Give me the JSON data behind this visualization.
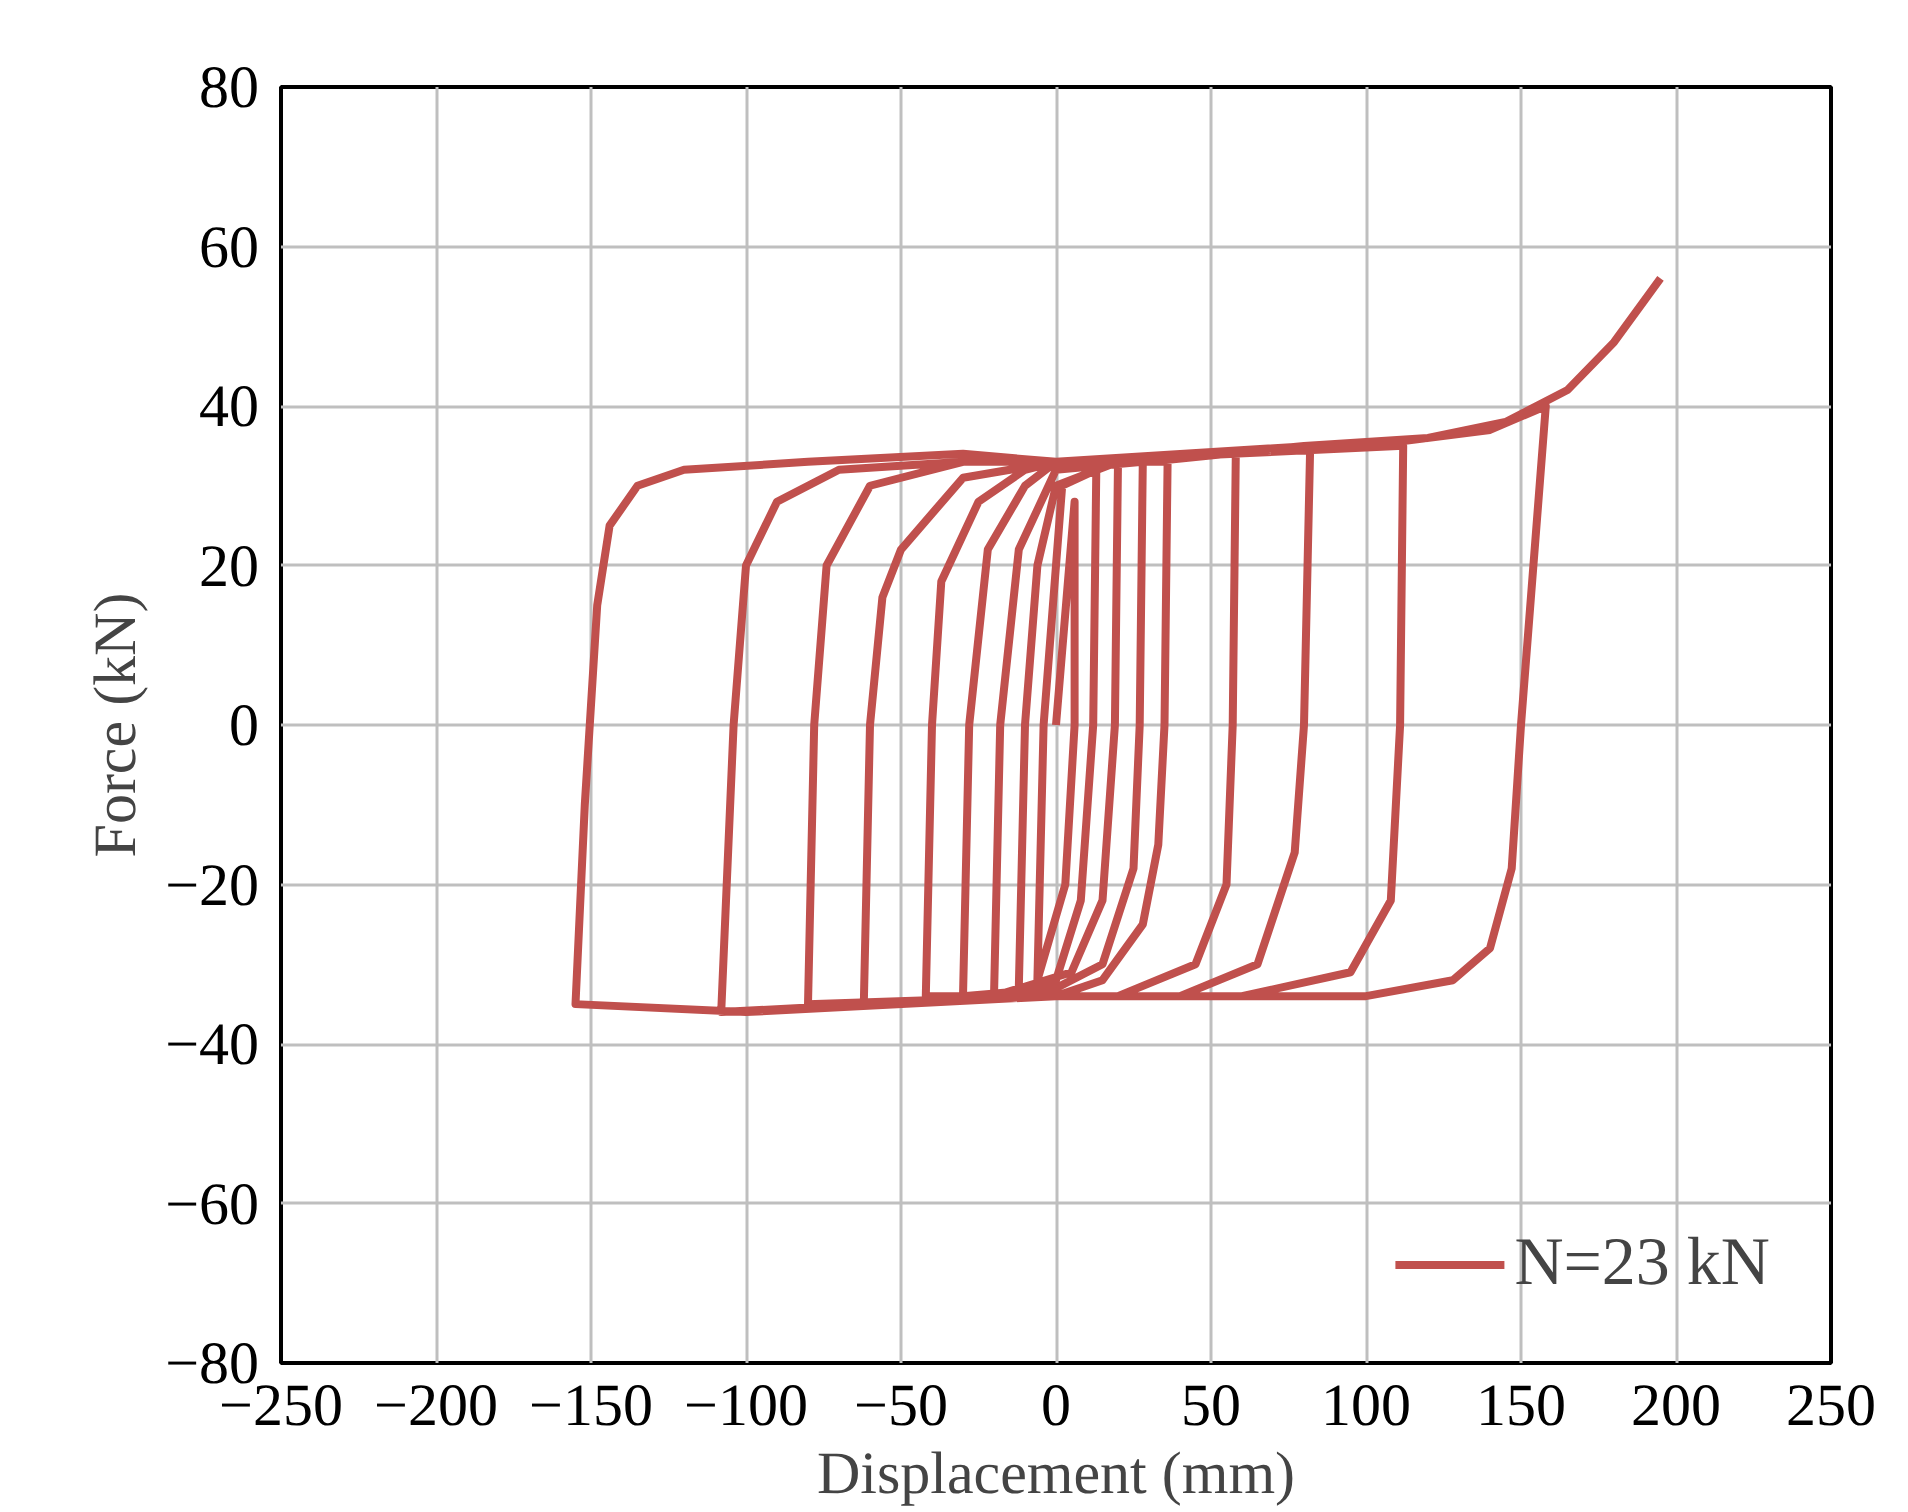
{
  "chart_data": {
    "type": "line",
    "xlabel": "Displacement (mm)",
    "ylabel": "Force (kN)",
    "xlim": [
      -250,
      250
    ],
    "xticks": [
      -250,
      -200,
      -150,
      -100,
      -50,
      0,
      50,
      100,
      150,
      200,
      250
    ],
    "ylim": [
      -80,
      80
    ],
    "yticks": [
      -80,
      -60,
      -40,
      -20,
      0,
      20,
      40,
      60,
      80
    ],
    "grid": true,
    "legend": "bottom right",
    "marker": "none",
    "line_style": "solid",
    "series": [
      {
        "name": "N=23 kN",
        "color": "#c0504d",
        "x": [
          0,
          6,
          6,
          3,
          -6,
          -4,
          0,
          2,
          13,
          12,
          8,
          0,
          -12,
          -10,
          -6,
          0,
          20,
          19,
          15,
          5,
          -20,
          -18,
          -12,
          0,
          28,
          27,
          25,
          15,
          0,
          -30,
          -28,
          -22,
          -10,
          0,
          36,
          35,
          33,
          28,
          15,
          0,
          -42,
          -40,
          -37,
          -25,
          -10,
          0,
          58,
          57,
          55,
          45,
          20,
          0,
          -62,
          -60,
          -56,
          -50,
          -30,
          0,
          82,
          80,
          77,
          65,
          40,
          0,
          -80,
          -78,
          -74,
          -60,
          -30,
          0,
          112,
          111,
          108,
          95,
          60,
          0,
          -60,
          -108,
          -104,
          -100,
          -90,
          -70,
          -30,
          0,
          50,
          100,
          140,
          158,
          150,
          147,
          140,
          128,
          100,
          50,
          0,
          -100,
          -155,
          -152,
          -148,
          -144,
          -135,
          -120,
          -80,
          -30,
          0,
          30,
          80,
          120,
          145,
          165,
          180,
          195
        ],
        "values": [
          0,
          28,
          0,
          -20,
          -32,
          0,
          20,
          30,
          32,
          0,
          -22,
          -32,
          -33,
          0,
          20,
          30,
          33,
          0,
          -22,
          -31,
          -34,
          0,
          22,
          32,
          33,
          0,
          -18,
          -30,
          -33,
          -34,
          0,
          22,
          30,
          33,
          33,
          0,
          -15,
          -25,
          -32,
          -34,
          -34,
          0,
          18,
          28,
          32,
          33,
          34,
          0,
          -20,
          -30,
          -34,
          -34,
          -35,
          0,
          16,
          22,
          31,
          33,
          35,
          0,
          -16,
          -30,
          -34,
          -34,
          -35,
          0,
          20,
          30,
          33,
          33,
          35,
          0,
          -22,
          -31,
          -34,
          -34,
          -35,
          -36,
          0,
          20,
          28,
          32,
          33,
          33,
          34,
          35,
          37,
          40,
          0,
          -18,
          -28,
          -32,
          -34,
          -34,
          -34,
          -36,
          -35,
          -10,
          15,
          25,
          30,
          32,
          33,
          34,
          33,
          33,
          35,
          36,
          38,
          42,
          48,
          56
        ]
      }
    ]
  }
}
